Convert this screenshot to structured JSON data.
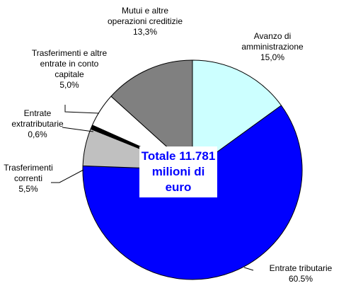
{
  "chart_data": {
    "type": "pie",
    "categories": [
      "Avanzo di amministrazione",
      "Entrate tributarie",
      "Trasferimenti correnti",
      "Entrate extratributarie",
      "Trasferimenti e altre entrate in conto capitale",
      "Mutui e altre operazioni creditizie"
    ],
    "values": [
      15.0,
      60.5,
      5.5,
      0.6,
      5.0,
      13.3
    ],
    "value_labels": [
      "15,0%",
      "60.5%",
      "5,5%",
      "0,6%",
      "5,0%",
      "13,3%"
    ],
    "colors": [
      "#ccffff",
      "#0000ff",
      "#c0c0c0",
      "#000000",
      "#ffffff",
      "#808080"
    ],
    "annotation": "Totale 11.781 milioni di euro"
  }
}
